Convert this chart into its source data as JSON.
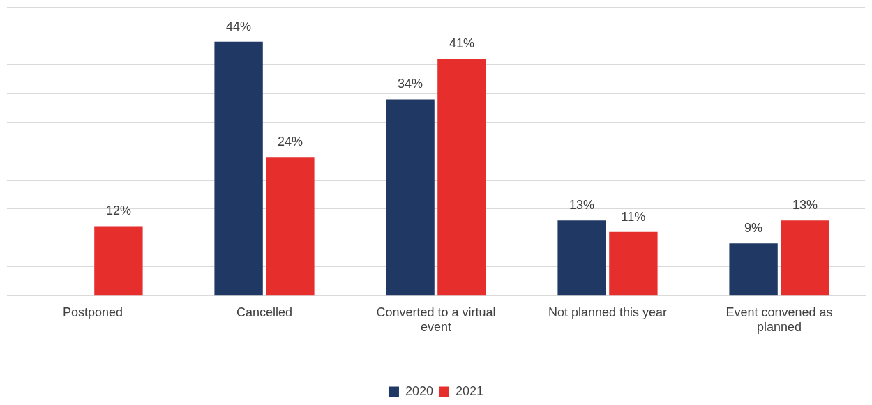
{
  "chart_data": {
    "type": "bar",
    "categories": [
      "Postponed",
      "Cancelled",
      "Converted to a virtual event",
      "Not planned this year",
      "Event convened as planned"
    ],
    "series": [
      {
        "name": "2020",
        "color": "#203864",
        "values": [
          null,
          44,
          34,
          13,
          9
        ],
        "value_labels": [
          null,
          "44%",
          "34%",
          "13%",
          "9%"
        ]
      },
      {
        "name": "2021",
        "color": "#e62e2d",
        "values": [
          12,
          24,
          41,
          11,
          13
        ],
        "value_labels": [
          "12%",
          "24%",
          "41%",
          "11%",
          "13%"
        ]
      }
    ],
    "tick_labels": "x",
    "grid": "y",
    "legend": "bottom"
  }
}
